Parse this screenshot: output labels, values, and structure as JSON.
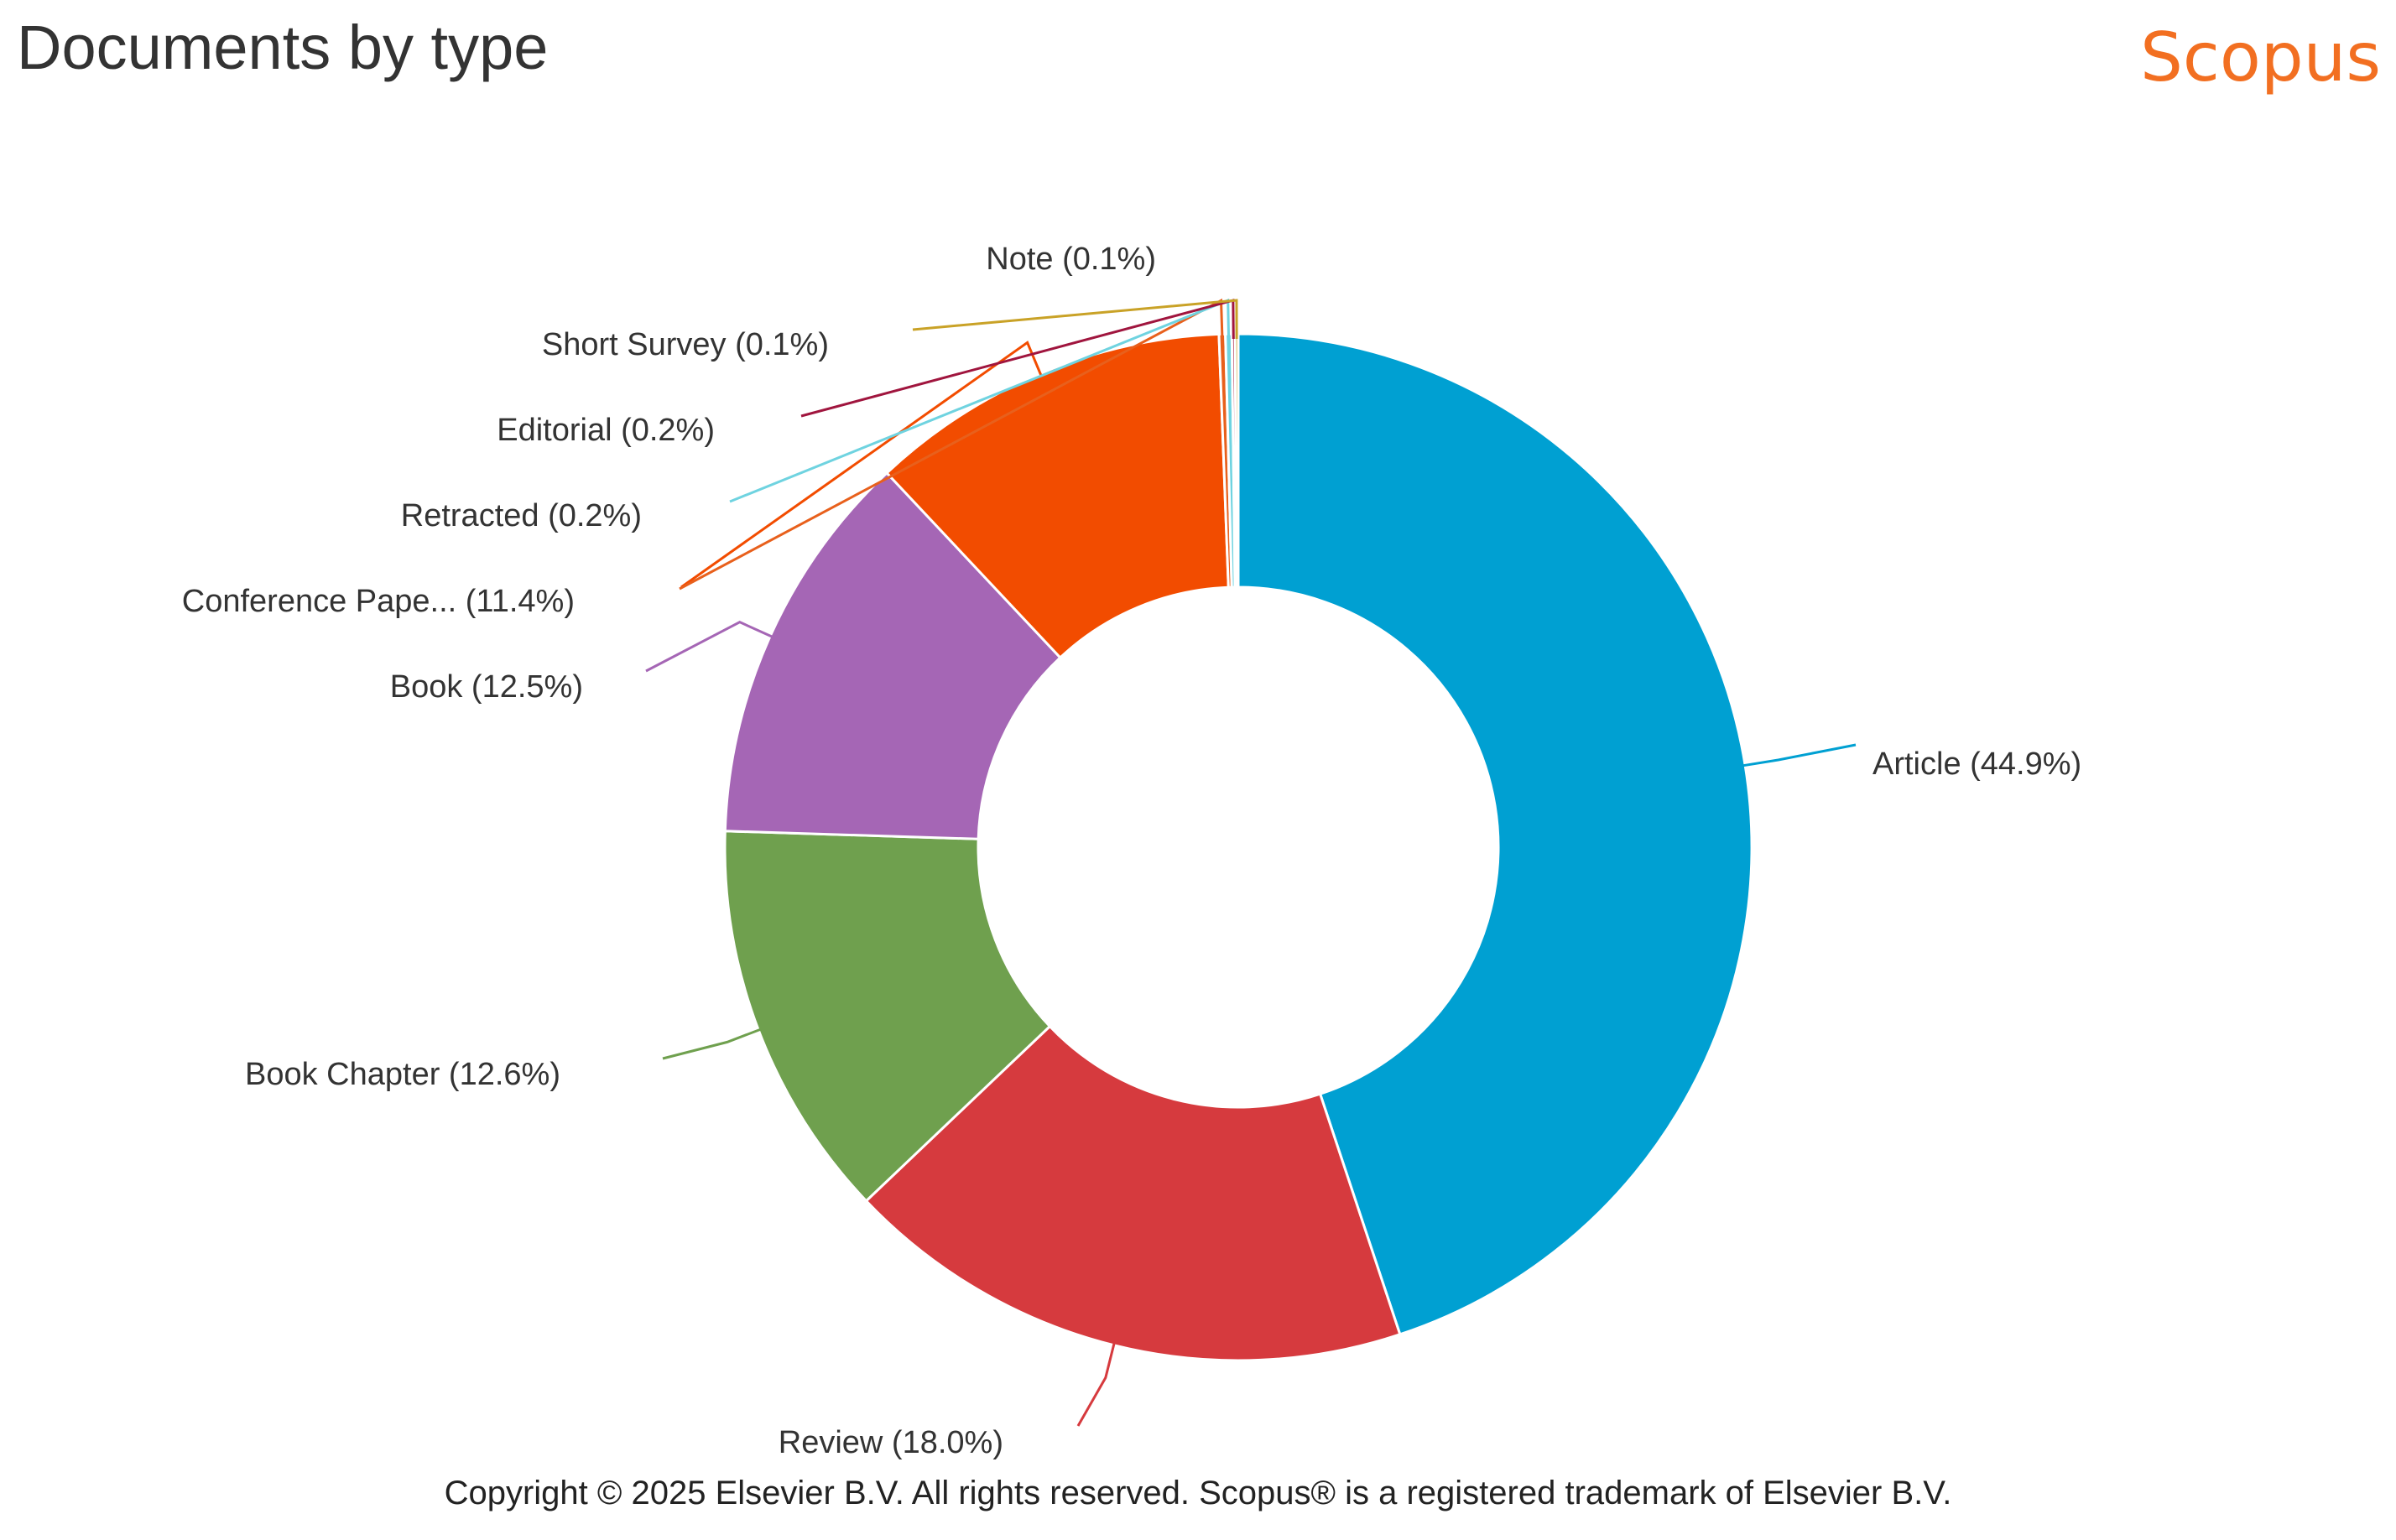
{
  "header": {
    "title": "Documents by type",
    "brand": "Scopus"
  },
  "footer": {
    "copyright": "Copyright © 2025 Elsevier B.V. All rights reserved. Scopus® is a registered trademark of Elsevier B.V."
  },
  "colors": {
    "brand": "#F26F21",
    "slice_border": "#ffffff"
  },
  "chart_data": {
    "type": "pie",
    "donut": true,
    "title": "Documents by type",
    "legend": "none",
    "start": "top, clockwise",
    "slices": [
      {
        "label": "Article",
        "display": "Article (44.9%)",
        "value": 44.9,
        "color": "#00A0D2",
        "side": "right"
      },
      {
        "label": "Review",
        "display": "Review (18.0%)",
        "value": 18.0,
        "color": "#D63A3E",
        "side": "left"
      },
      {
        "label": "Book Chapter",
        "display": "Book Chapter (12.6%)",
        "value": 12.6,
        "color": "#6FA04E",
        "side": "left"
      },
      {
        "label": "Book",
        "display": "Book (12.5%)",
        "value": 12.5,
        "color": "#A566B5",
        "side": "left"
      },
      {
        "label": "Conference Paper",
        "display": "Conference Pape... (11.4%)",
        "value": 11.4,
        "color": "#F24C00",
        "side": "left"
      },
      {
        "label": "Retracted",
        "display": "Retracted (0.2%)",
        "value": 0.2,
        "color": "#E8601C",
        "side": "left"
      },
      {
        "label": "Editorial",
        "display": "Editorial (0.2%)",
        "value": 0.2,
        "color": "#6FD3E0",
        "side": "left"
      },
      {
        "label": "Short Survey",
        "display": "Short Survey (0.1%)",
        "value": 0.1,
        "color": "#A0153E",
        "side": "left"
      },
      {
        "label": "Note",
        "display": "Note (0.1%)",
        "value": 0.1,
        "color": "#C9A227",
        "side": "left"
      }
    ]
  }
}
